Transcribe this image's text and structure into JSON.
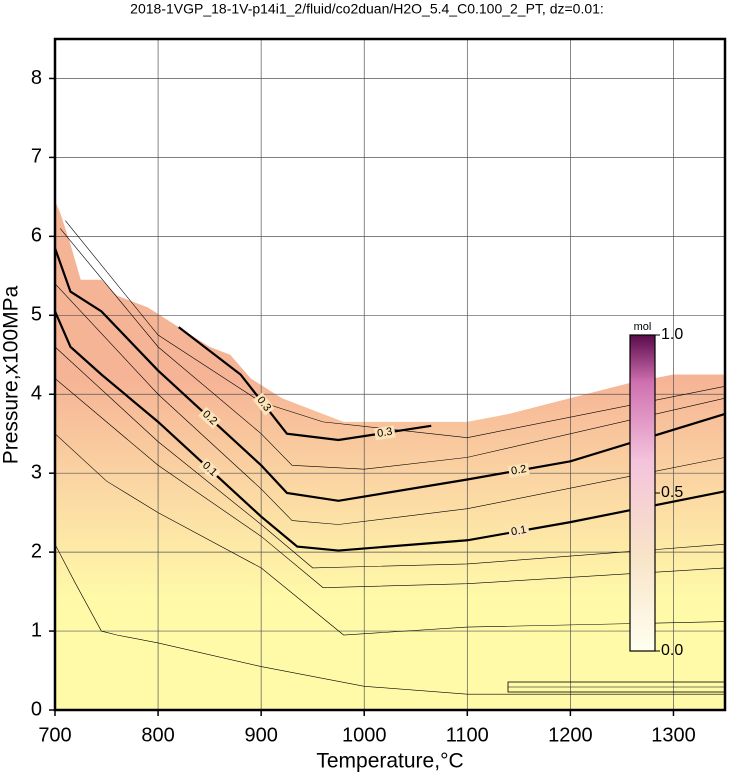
{
  "chart_data": {
    "type": "contour",
    "title": "2018-1VGP_18-1V-p14i1_2/fluid/co2duan/H2O_5.4_C0.100_2_PT, dz=0.01:",
    "x_label": "Temperature,°C",
    "y_label": "Pressure,x100MPa",
    "xlim": [
      700,
      1350
    ],
    "ylim": [
      0,
      8.5
    ],
    "xticks": [
      700,
      800,
      900,
      1000,
      1100,
      1200,
      1300
    ],
    "yticks": [
      0,
      1,
      2,
      3,
      4,
      5,
      6,
      7,
      8
    ],
    "grid": true,
    "domain_boundary": {
      "x": [
        700,
        705,
        715,
        725,
        745,
        760,
        790,
        820,
        850,
        870,
        890,
        920,
        940,
        960,
        980,
        1100,
        1140,
        1200,
        1260,
        1300,
        1350
      ],
      "y": [
        6.45,
        6.3,
        5.9,
        5.45,
        5.45,
        5.25,
        5.1,
        4.85,
        4.6,
        4.5,
        4.2,
        3.95,
        3.85,
        3.75,
        3.65,
        3.65,
        3.75,
        3.95,
        4.15,
        4.25,
        4.25
      ]
    },
    "contours": [
      {
        "level": 0.01,
        "x": [
          700,
          720,
          745,
          760,
          800,
          900,
          1000,
          1100,
          1200,
          1350
        ],
        "y": [
          2.1,
          1.6,
          1.0,
          0.95,
          0.85,
          0.55,
          0.3,
          0.2,
          0.2,
          0.2
        ]
      },
      {
        "level": 0.03,
        "x": [
          700,
          750,
          800,
          900,
          980,
          1100,
          1350
        ],
        "y": [
          3.5,
          2.9,
          2.5,
          1.8,
          0.95,
          1.05,
          1.12
        ]
      },
      {
        "level": 0.05,
        "x": [
          700,
          800,
          900,
          960,
          1100,
          1350
        ],
        "y": [
          4.2,
          3.1,
          2.2,
          1.55,
          1.6,
          1.8
        ]
      },
      {
        "level": 0.07,
        "x": [
          700,
          800,
          900,
          950,
          1100,
          1350
        ],
        "y": [
          4.6,
          3.4,
          2.35,
          1.8,
          1.85,
          2.1
        ]
      },
      {
        "level": 0.1,
        "x": [
          700,
          715,
          745,
          800,
          900,
          935,
          975,
          1100,
          1200,
          1350
        ],
        "y": [
          5.05,
          4.6,
          4.25,
          3.65,
          2.45,
          2.07,
          2.02,
          2.15,
          2.38,
          2.77
        ]
      },
      {
        "level": 0.15,
        "x": [
          700,
          800,
          900,
          930,
          975,
          1100,
          1350
        ],
        "y": [
          5.4,
          4.0,
          2.8,
          2.4,
          2.35,
          2.55,
          3.2
        ]
      },
      {
        "level": 0.2,
        "x": [
          700,
          715,
          745,
          800,
          900,
          925,
          975,
          1100,
          1200,
          1350
        ],
        "y": [
          5.85,
          5.3,
          5.05,
          4.3,
          3.1,
          2.75,
          2.65,
          2.92,
          3.15,
          3.75
        ]
      },
      {
        "level": 0.25,
        "x": [
          705,
          800,
          900,
          930,
          1000,
          1100,
          1350
        ],
        "y": [
          6.1,
          4.6,
          3.5,
          3.1,
          3.05,
          3.2,
          3.95
        ]
      },
      {
        "level": 0.28,
        "x": [
          710,
          800,
          900,
          960,
          1100,
          1350
        ],
        "y": [
          6.2,
          4.75,
          3.9,
          3.65,
          3.45,
          4.1
        ]
      },
      {
        "level": 0.3,
        "x": [
          820,
          880,
          925,
          975,
          1065
        ],
        "y": [
          4.85,
          4.25,
          3.5,
          3.42,
          3.6
        ]
      }
    ],
    "colorbar": {
      "label": "mol",
      "lim": [
        0,
        1
      ],
      "ticks": [
        {
          "value": 0,
          "label": "0.0"
        },
        {
          "value": 0.5,
          "label": "0.5"
        },
        {
          "value": 1,
          "label": "1.0"
        }
      ]
    }
  }
}
